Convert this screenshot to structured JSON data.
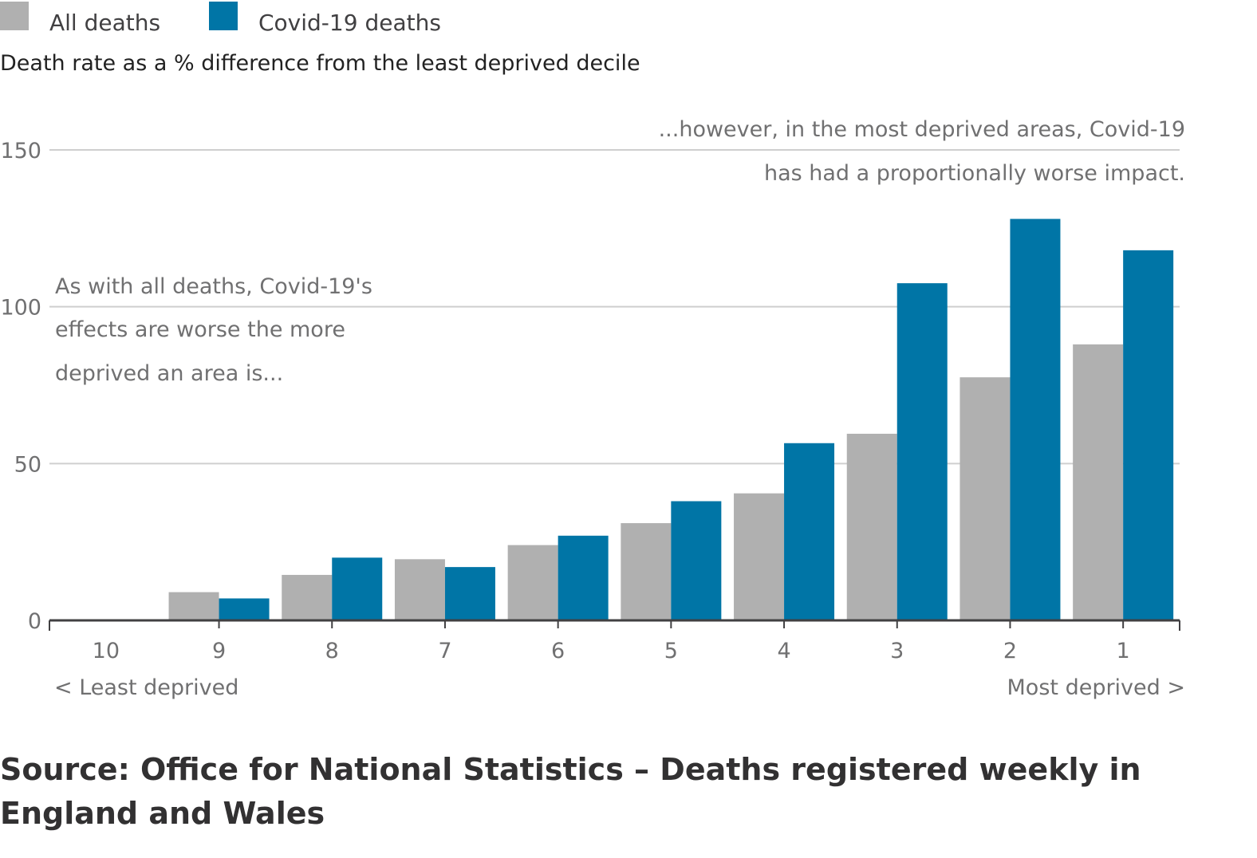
{
  "chart_data": {
    "type": "bar",
    "ylabel": "Death rate as a % difference from the least deprived decile",
    "categories": [
      "10",
      "9",
      "8",
      "7",
      "6",
      "5",
      "4",
      "3",
      "2",
      "1"
    ],
    "series": [
      {
        "name": "All deaths",
        "color": "#b0b0b0",
        "values": [
          0,
          9,
          14.5,
          19.5,
          24,
          31,
          40.5,
          59.5,
          77.5,
          88
        ]
      },
      {
        "name": "Covid-19 deaths",
        "color": "#0075a6",
        "values": [
          0,
          7,
          20,
          17,
          27,
          38,
          56.5,
          107.5,
          128,
          118
        ]
      }
    ],
    "ylim": [
      0,
      150
    ],
    "yticks": [
      "0",
      "50",
      "100",
      "150"
    ],
    "grid": true,
    "legend": "top-left",
    "xaxis_left_note": "< Least deprived",
    "xaxis_right_note": "Most deprived >",
    "annotations": {
      "left": [
        "As with all deaths, Covid-19's",
        "effects are worse the more",
        "deprived an area is..."
      ],
      "right": [
        "...however, in the most deprived areas, Covid-19",
        "has had a proportionally worse impact."
      ]
    }
  },
  "source": "Source: Office for National Statistics – Deaths registered weekly in England and Wales"
}
